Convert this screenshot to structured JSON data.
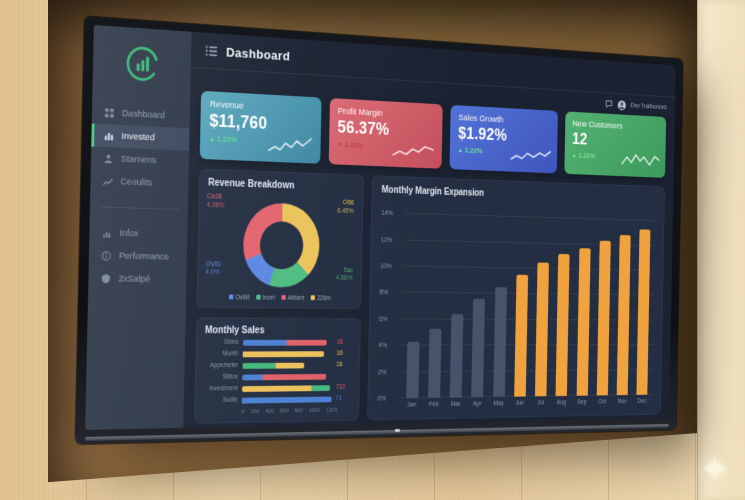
{
  "wall": {
    "sparkle_icon": "✦"
  },
  "header": {
    "title": "Dashboard",
    "menu_icon": "menu-icon"
  },
  "userbar": {
    "name": "Dev Trailhonord",
    "icons": [
      "chat-icon",
      "avatar"
    ]
  },
  "sidebar": {
    "logo_icon": "chart-logo-icon",
    "items": [
      {
        "label": "Dashboard",
        "icon": "grid-icon",
        "active": false
      },
      {
        "label": "Invested",
        "icon": "bar-chart-icon",
        "active": true
      },
      {
        "label": "Starnens",
        "icon": "user-icon",
        "active": false
      },
      {
        "label": "Ceoulits",
        "icon": "trend-icon",
        "active": false
      }
    ],
    "items_secondary": [
      {
        "label": "Infox",
        "icon": "chart-small-icon"
      },
      {
        "label": "Performance",
        "icon": "info-icon"
      },
      {
        "label": "2xSalpé",
        "icon": "shield-icon"
      }
    ],
    "active_accent": "#3ec97e"
  },
  "kpi_cards": [
    {
      "label": "Revenue",
      "value": "$11,760",
      "delta": "1.22%",
      "direction": "up",
      "delta_color": "#5fe08d",
      "gradient": [
        "#5ba8bd",
        "#3d87a3"
      ]
    },
    {
      "label": "Profit Margin",
      "value": "56.37%",
      "delta": "1.22%",
      "direction": "down",
      "delta_color": "#c03a4a",
      "gradient": [
        "#d96a73",
        "#c44f5c"
      ]
    },
    {
      "label": "Sales Growth",
      "value": "$1.92%",
      "delta": "1.22%",
      "direction": "up",
      "delta_color": "#6fe69c",
      "gradient": [
        "#5273d6",
        "#3f55be"
      ]
    },
    {
      "label": "New Customers",
      "value": "12",
      "delta": "1.22%",
      "direction": "up",
      "delta_color": "#7ce89a",
      "gradient": [
        "#53b172",
        "#3c9a5c"
      ]
    }
  ],
  "palette": {
    "blue": "#4c7fd3",
    "red": "#df5f67",
    "yellow": "#ecc15c",
    "green": "#46b77d"
  },
  "chart_data": [
    {
      "type": "pie",
      "title": "Revenue Breakdown",
      "slices": [
        {
          "callout": "O66",
          "value_label": "6.45%",
          "pct": 37,
          "color": "#ecc35b",
          "pos": "tr"
        },
        {
          "callout": "Too",
          "value_label": "4.88%",
          "pct": 18,
          "color": "#4fbc82",
          "pos": "br"
        },
        {
          "callout": "OVID",
          "value_label": "4.0%",
          "pct": 14,
          "color": "#5d87e2",
          "pos": "bl"
        },
        {
          "callout": "Ca18",
          "value_label": "4.38%",
          "pct": 31,
          "color": "#e2646d",
          "pos": "tl"
        }
      ],
      "legend": [
        {
          "label": "OvWl",
          "color": "#5d87e2"
        },
        {
          "label": "Invet",
          "color": "#4fbc82"
        },
        {
          "label": "Abbert",
          "color": "#e2646d"
        },
        {
          "label": "228m",
          "color": "#ecc35b"
        }
      ]
    },
    {
      "type": "bar",
      "orientation": "horizontal",
      "title": "Monthly Sales",
      "xlim": [
        0,
        1200
      ],
      "x_ticks": [
        "0",
        "150",
        "400",
        "600",
        "800",
        "1000",
        "1200"
      ],
      "rows": [
        {
          "category": "Shine",
          "segments": [
            {
              "color": "blue",
              "value": 560
            },
            {
              "color": "red",
              "value": 540
            }
          ],
          "value_label": "16",
          "label_color": "red"
        },
        {
          "category": "Month",
          "segments": [
            {
              "color": "yellow",
              "value": 1060
            }
          ],
          "value_label": "16",
          "label_color": "yellow"
        },
        {
          "category": "Appemeter",
          "segments": [
            {
              "color": "green",
              "value": 430
            },
            {
              "color": "yellow",
              "value": 370
            }
          ],
          "value_label": "16",
          "label_color": "yellow"
        },
        {
          "category": "Stilice",
          "segments": [
            {
              "color": "blue",
              "value": 260
            },
            {
              "color": "red",
              "value": 840
            }
          ],
          "value_label": "",
          "label_color": "red"
        },
        {
          "category": "Investment",
          "segments": [
            {
              "color": "yellow",
              "value": 900
            },
            {
              "color": "green",
              "value": 250
            }
          ],
          "value_label": "710",
          "label_color": "red"
        },
        {
          "category": "Sudib",
          "segments": [
            {
              "color": "blue",
              "value": 1180
            }
          ],
          "value_label": "71",
          "label_color": "blue"
        }
      ]
    },
    {
      "type": "bar",
      "title": "Monthly Margin Expansion",
      "categories": [
        "Jan",
        "Feb",
        "Mar",
        "Apr",
        "May",
        "Jun",
        "Jul",
        "Aug",
        "Sep",
        "Oct",
        "Nov",
        "Dec"
      ],
      "values": [
        4.3,
        5.3,
        6.4,
        7.6,
        8.5,
        9.5,
        10.5,
        11.2,
        11.7,
        12.3,
        12.8,
        13.3
      ],
      "ylim": [
        0,
        14
      ],
      "y_ticks": [
        "0%",
        "2%",
        "4%",
        "6%",
        "8%",
        "10%",
        "12%",
        "14%"
      ],
      "grid": true,
      "highlight_from_index": 5,
      "colors": {
        "past": "#46536b",
        "highlight": "#f0a23f"
      }
    }
  ]
}
